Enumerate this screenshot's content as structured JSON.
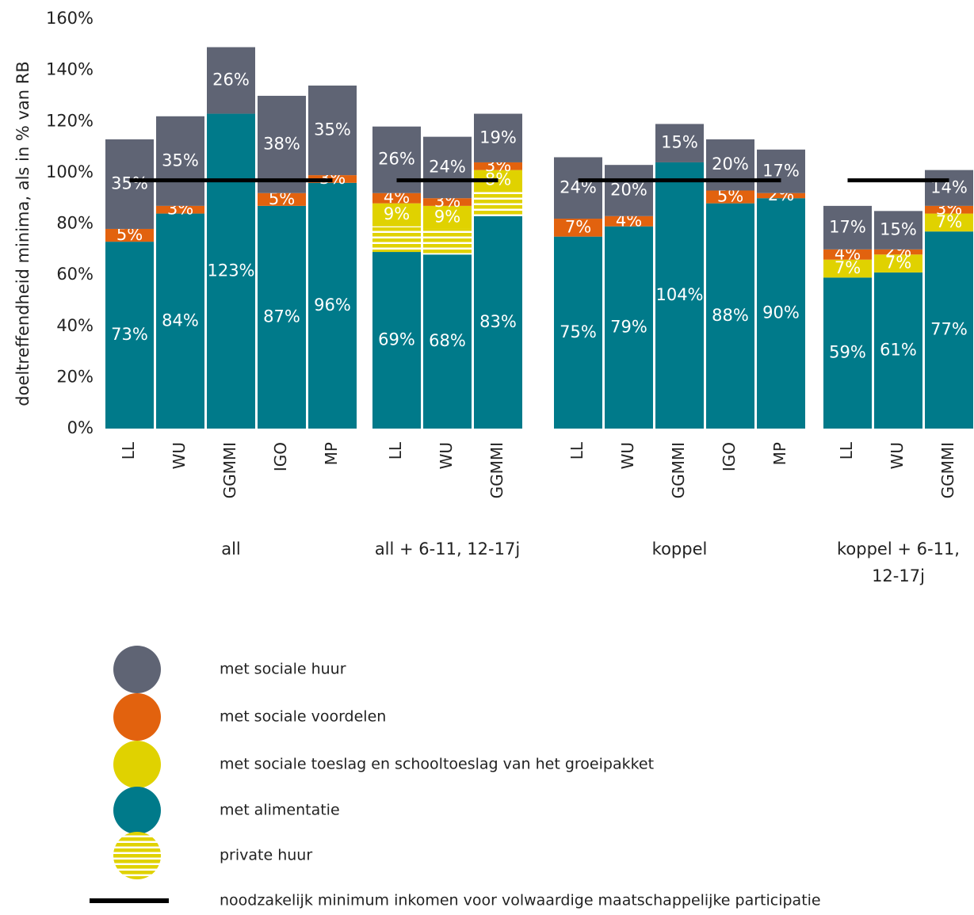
{
  "chart_data": {
    "type": "bar",
    "y_label": "doeltreffendheid minima, als in % van RB",
    "ylim": [
      0,
      160
    ],
    "yticks": [
      {
        "value": 0,
        "label": "0%"
      },
      {
        "value": 20,
        "label": "20%"
      },
      {
        "value": 40,
        "label": "40%"
      },
      {
        "value": 60,
        "label": "60%"
      },
      {
        "value": 80,
        "label": "80%"
      },
      {
        "value": 100,
        "label": "100%"
      },
      {
        "value": 120,
        "label": "120%"
      },
      {
        "value": 140,
        "label": "140%"
      },
      {
        "value": 160,
        "label": "160%"
      }
    ],
    "groups": [
      {
        "name": "all",
        "categories": [
          "LL",
          "WU",
          "GGMMI",
          "IGO",
          "MP"
        ]
      },
      {
        "name": "all + 6-11, 12-17j",
        "categories": [
          "LL",
          "WU",
          "GGMMI"
        ]
      },
      {
        "name": "koppel",
        "categories": [
          "LL",
          "WU",
          "GGMMI",
          "IGO",
          "MP"
        ]
      },
      {
        "name": "koppel + 6-11, 12-17j",
        "categories": [
          "LL",
          "WU",
          "GGMMI"
        ]
      }
    ],
    "series": [
      {
        "name": "met sociale huur",
        "color": "#5f6474",
        "values": [
          [
            35,
            35,
            26,
            38,
            35
          ],
          [
            26,
            24,
            19
          ],
          [
            24,
            20,
            15,
            20,
            17
          ],
          [
            17,
            15,
            14
          ]
        ],
        "value_labels": [
          [
            "35%",
            "35%",
            "26%",
            "38%",
            "35%"
          ],
          [
            "26%",
            "24%",
            "19%"
          ],
          [
            "24%",
            "20%",
            "15%",
            "20%",
            "17%"
          ],
          [
            "17%",
            "15%",
            "14%"
          ]
        ]
      },
      {
        "name": "met sociale voordelen",
        "color": "#e2620e",
        "values": [
          [
            5,
            3,
            null,
            5,
            3
          ],
          [
            4,
            3,
            3
          ],
          [
            7,
            4,
            null,
            5,
            2
          ],
          [
            4,
            2,
            3
          ]
        ],
        "value_labels": [
          [
            "5%",
            "3%",
            null,
            "5%",
            "3%"
          ],
          [
            "4%",
            "3%",
            "3%"
          ],
          [
            "7%",
            "4%",
            null,
            "5%",
            "2%"
          ],
          [
            "4%",
            "2%",
            "3%"
          ]
        ]
      },
      {
        "name": "met sociale toeslag en schooltoeslag van het groeipakket",
        "color": "#e0d200",
        "values": [
          [
            null,
            null,
            null,
            null,
            null
          ],
          [
            9,
            9,
            8
          ],
          [
            null,
            null,
            null,
            null,
            null
          ],
          [
            7,
            7,
            7
          ]
        ],
        "value_labels": [
          [
            null,
            null,
            null,
            null,
            null
          ],
          [
            "9%",
            "9%",
            "8%"
          ],
          [
            null,
            null,
            null,
            null,
            null
          ],
          [
            "7%",
            "7%",
            "7%"
          ]
        ]
      },
      {
        "name": "met alimentatie",
        "color": "#007a8a",
        "values": [
          [
            73,
            84,
            123,
            87,
            96
          ],
          [
            69,
            68,
            83
          ],
          [
            75,
            79,
            104,
            88,
            90
          ],
          [
            59,
            61,
            77
          ]
        ],
        "value_labels": [
          [
            "73%",
            "84%",
            "123%",
            "87%",
            "96%"
          ],
          [
            "69%",
            "68%",
            "83%"
          ],
          [
            "75%",
            "79%",
            "104%",
            "88%",
            "90%"
          ],
          [
            "59%",
            "61%",
            "77%"
          ]
        ]
      },
      {
        "name": "private huur",
        "color": "#e0d200",
        "pattern": "horizontal-lines",
        "values": [
          [
            null,
            null,
            null,
            null,
            null
          ],
          [
            10,
            10,
            10
          ],
          [
            null,
            null,
            null,
            null,
            null
          ],
          [
            null,
            null,
            null
          ]
        ]
      }
    ],
    "minimum": {
      "name": "noodzakelijk minimum inkomen voor volwaardige maatschappelijke participatie",
      "color": "#000000",
      "values": [
        97,
        97,
        97,
        97
      ]
    }
  }
}
